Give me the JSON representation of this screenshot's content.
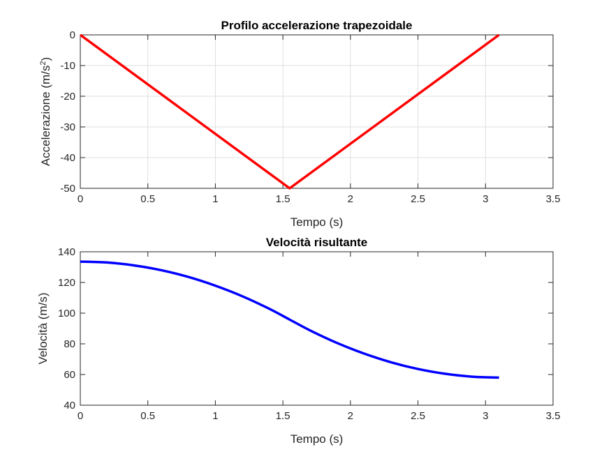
{
  "chart_data": [
    {
      "type": "line",
      "title": "Profilo accelerazione trapezoidale",
      "xlabel": "Tempo (s)",
      "ylabel_main": "Accelerazione (m/s",
      "ylabel_sup": "2",
      "ylabel_close": ")",
      "xlim": [
        0,
        3.5
      ],
      "ylim": [
        -50,
        0
      ],
      "xticks": [
        0,
        0.5,
        1,
        1.5,
        2,
        2.5,
        3,
        3.5
      ],
      "yticks": [
        0,
        -10,
        -20,
        -30,
        -40,
        -50
      ],
      "xtick_labels": [
        "0",
        "0.5",
        "1",
        "1.5",
        "2",
        "2.5",
        "3",
        "3.5"
      ],
      "ytick_labels": [
        "0",
        "-10",
        "-20",
        "-30",
        "-40",
        "-50"
      ],
      "grid": true,
      "series": [
        {
          "color": "#ff0000",
          "x": [
            0,
            1.55,
            3.1
          ],
          "y": [
            0,
            -50,
            0
          ]
        }
      ]
    },
    {
      "type": "line",
      "title": "Velocità risultante",
      "xlabel": "Tempo (s)",
      "ylabel": "Velocità (m/s)",
      "xlim": [
        0,
        3.5
      ],
      "ylim": [
        40,
        140
      ],
      "xticks": [
        0,
        0.5,
        1,
        1.5,
        2,
        2.5,
        3,
        3.5
      ],
      "yticks": [
        40,
        60,
        80,
        100,
        120,
        140
      ],
      "xtick_labels": [
        "0",
        "0.5",
        "1",
        "1.5",
        "2",
        "2.5",
        "3",
        "3.5"
      ],
      "ytick_labels": [
        "40",
        "60",
        "80",
        "100",
        "120",
        "140"
      ],
      "grid": false,
      "series": [
        {
          "color": "#0000ff",
          "x": [
            0,
            0.2,
            0.4,
            0.6,
            0.8,
            1.0,
            1.2,
            1.4,
            1.55,
            1.7,
            1.9,
            2.1,
            2.3,
            2.5,
            2.7,
            2.9,
            3.1
          ],
          "y": [
            133.6,
            133.0,
            131.1,
            128.0,
            123.6,
            117.9,
            111.0,
            102.8,
            95.8,
            88.8,
            80.6,
            73.7,
            68.0,
            63.6,
            60.5,
            58.6,
            58.0
          ]
        }
      ]
    }
  ]
}
